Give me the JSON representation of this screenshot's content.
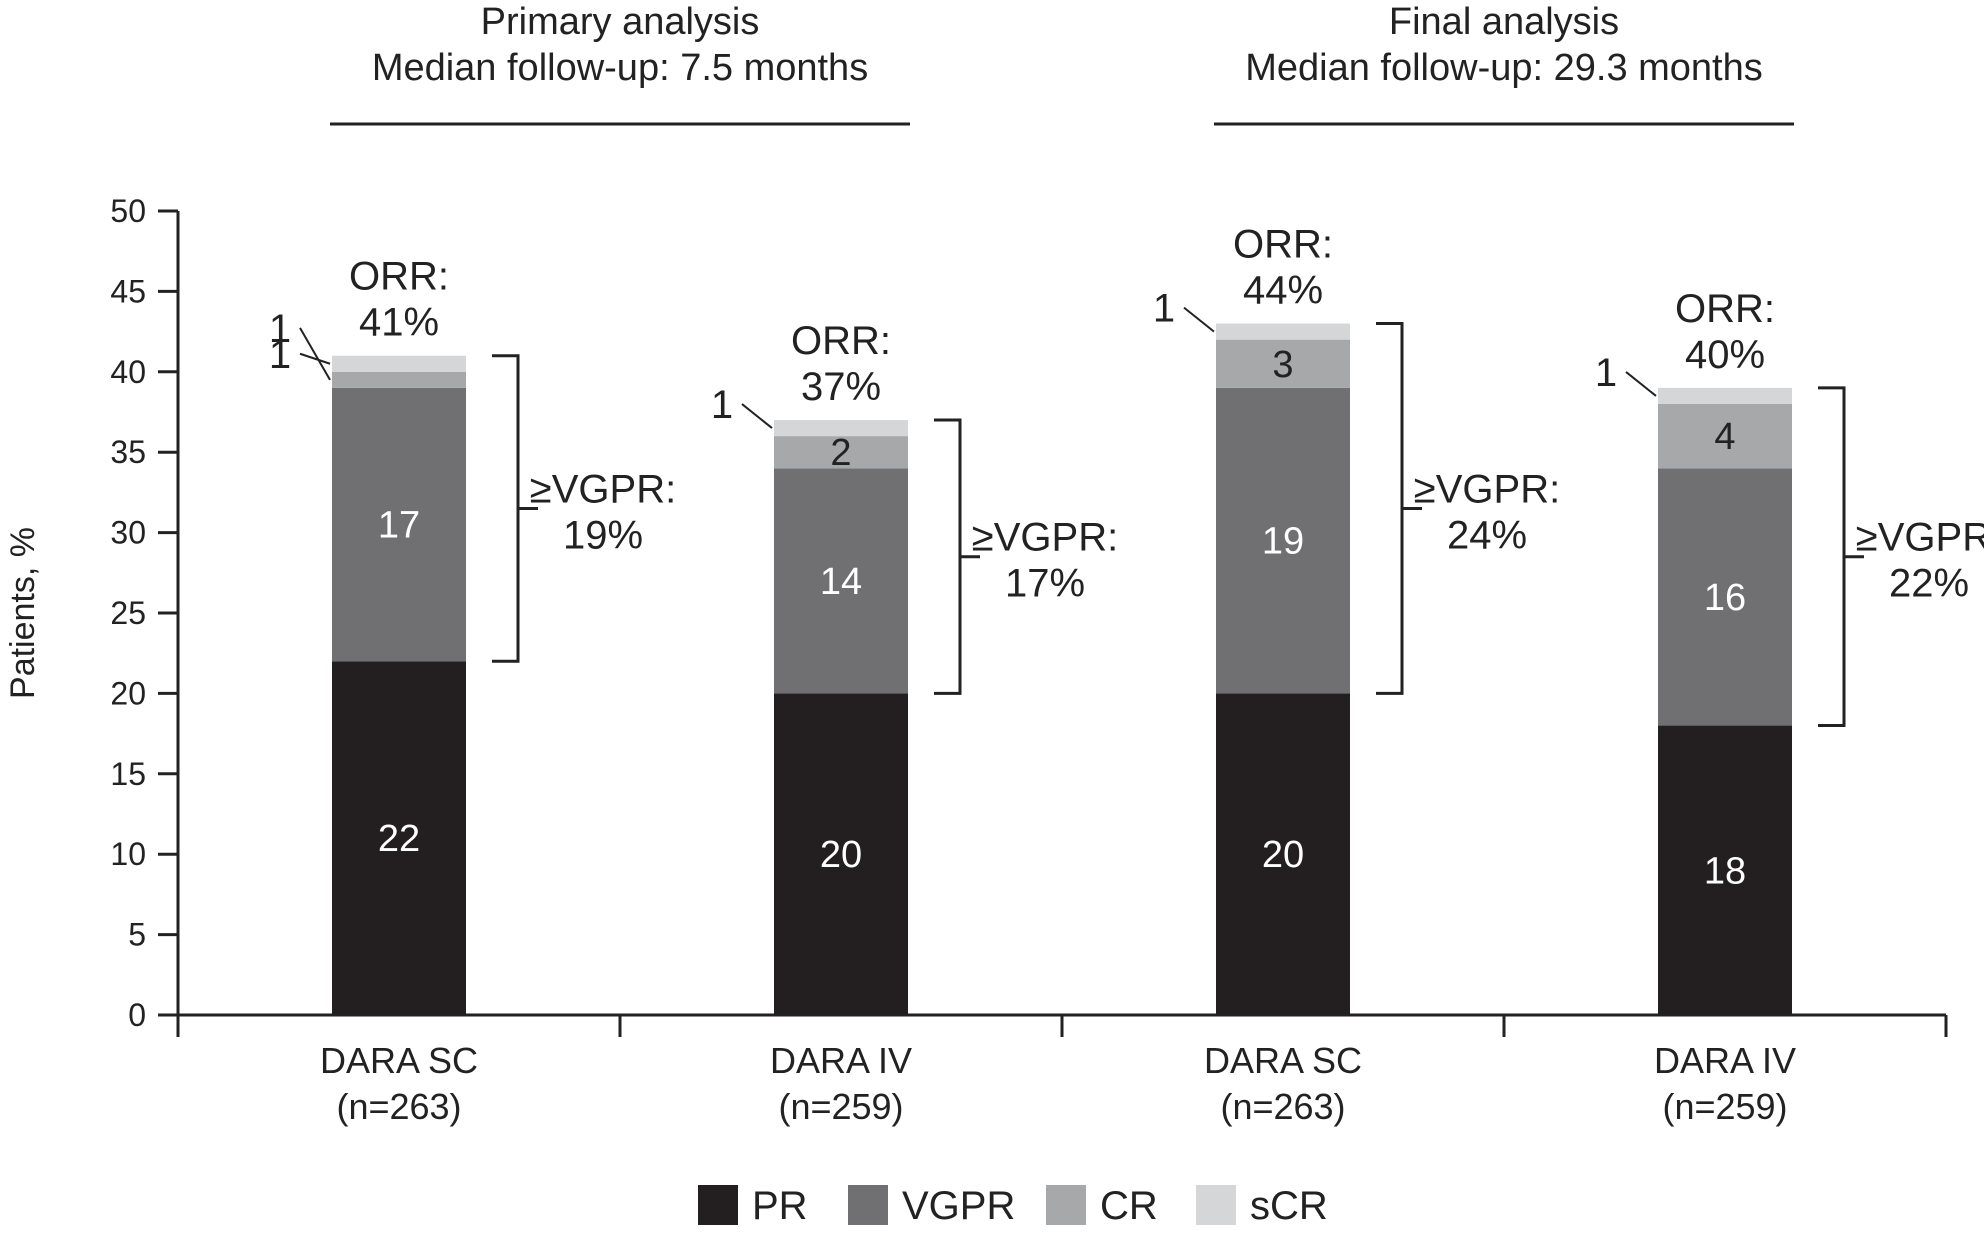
{
  "chart_data": {
    "type": "bar",
    "stacked": true,
    "ylabel": "Patients, %",
    "ylim": [
      0,
      50
    ],
    "yticks": [
      0,
      5,
      10,
      15,
      20,
      25,
      30,
      35,
      40,
      45,
      50
    ],
    "grid": false,
    "legend_position": "bottom",
    "groups": [
      {
        "title": [
          "Primary analysis",
          "Median follow-up: 7.5 months"
        ],
        "bars": [
          0,
          1
        ]
      },
      {
        "title": [
          "Final analysis",
          "Median follow-up: 29.3 months"
        ],
        "bars": [
          2,
          3
        ]
      }
    ],
    "categories": [
      [
        "DARA SC",
        "(n=263)"
      ],
      [
        "DARA IV",
        "(n=259)"
      ],
      [
        "DARA SC",
        "(n=263)"
      ],
      [
        "DARA IV",
        "(n=259)"
      ]
    ],
    "series": [
      {
        "name": "PR",
        "values": [
          22,
          20,
          20,
          18
        ],
        "color": "#231f20",
        "label_color": "#ffffff"
      },
      {
        "name": "VGPR",
        "values": [
          17,
          14,
          19,
          16
        ],
        "color": "#707073",
        "label_color": "#ffffff"
      },
      {
        "name": "CR",
        "values": [
          1,
          2,
          3,
          4
        ],
        "color": "#a7a8aa",
        "label_color": "#222222"
      },
      {
        "name": "sCR",
        "values": [
          1,
          1,
          1,
          1
        ],
        "color": "#d5d6d8",
        "label_color": "#222222"
      }
    ],
    "orr": [
      [
        "ORR:",
        "41%"
      ],
      [
        "ORR:",
        "37%"
      ],
      [
        "ORR:",
        "44%"
      ],
      [
        "ORR:",
        "40%"
      ]
    ],
    "vgpr_plus": [
      [
        "≥VGPR:",
        "19%"
      ],
      [
        "≥VGPR:",
        "17%"
      ],
      [
        "≥VGPR:",
        "24%"
      ],
      [
        "≥VGPR:",
        "22%"
      ]
    ]
  }
}
